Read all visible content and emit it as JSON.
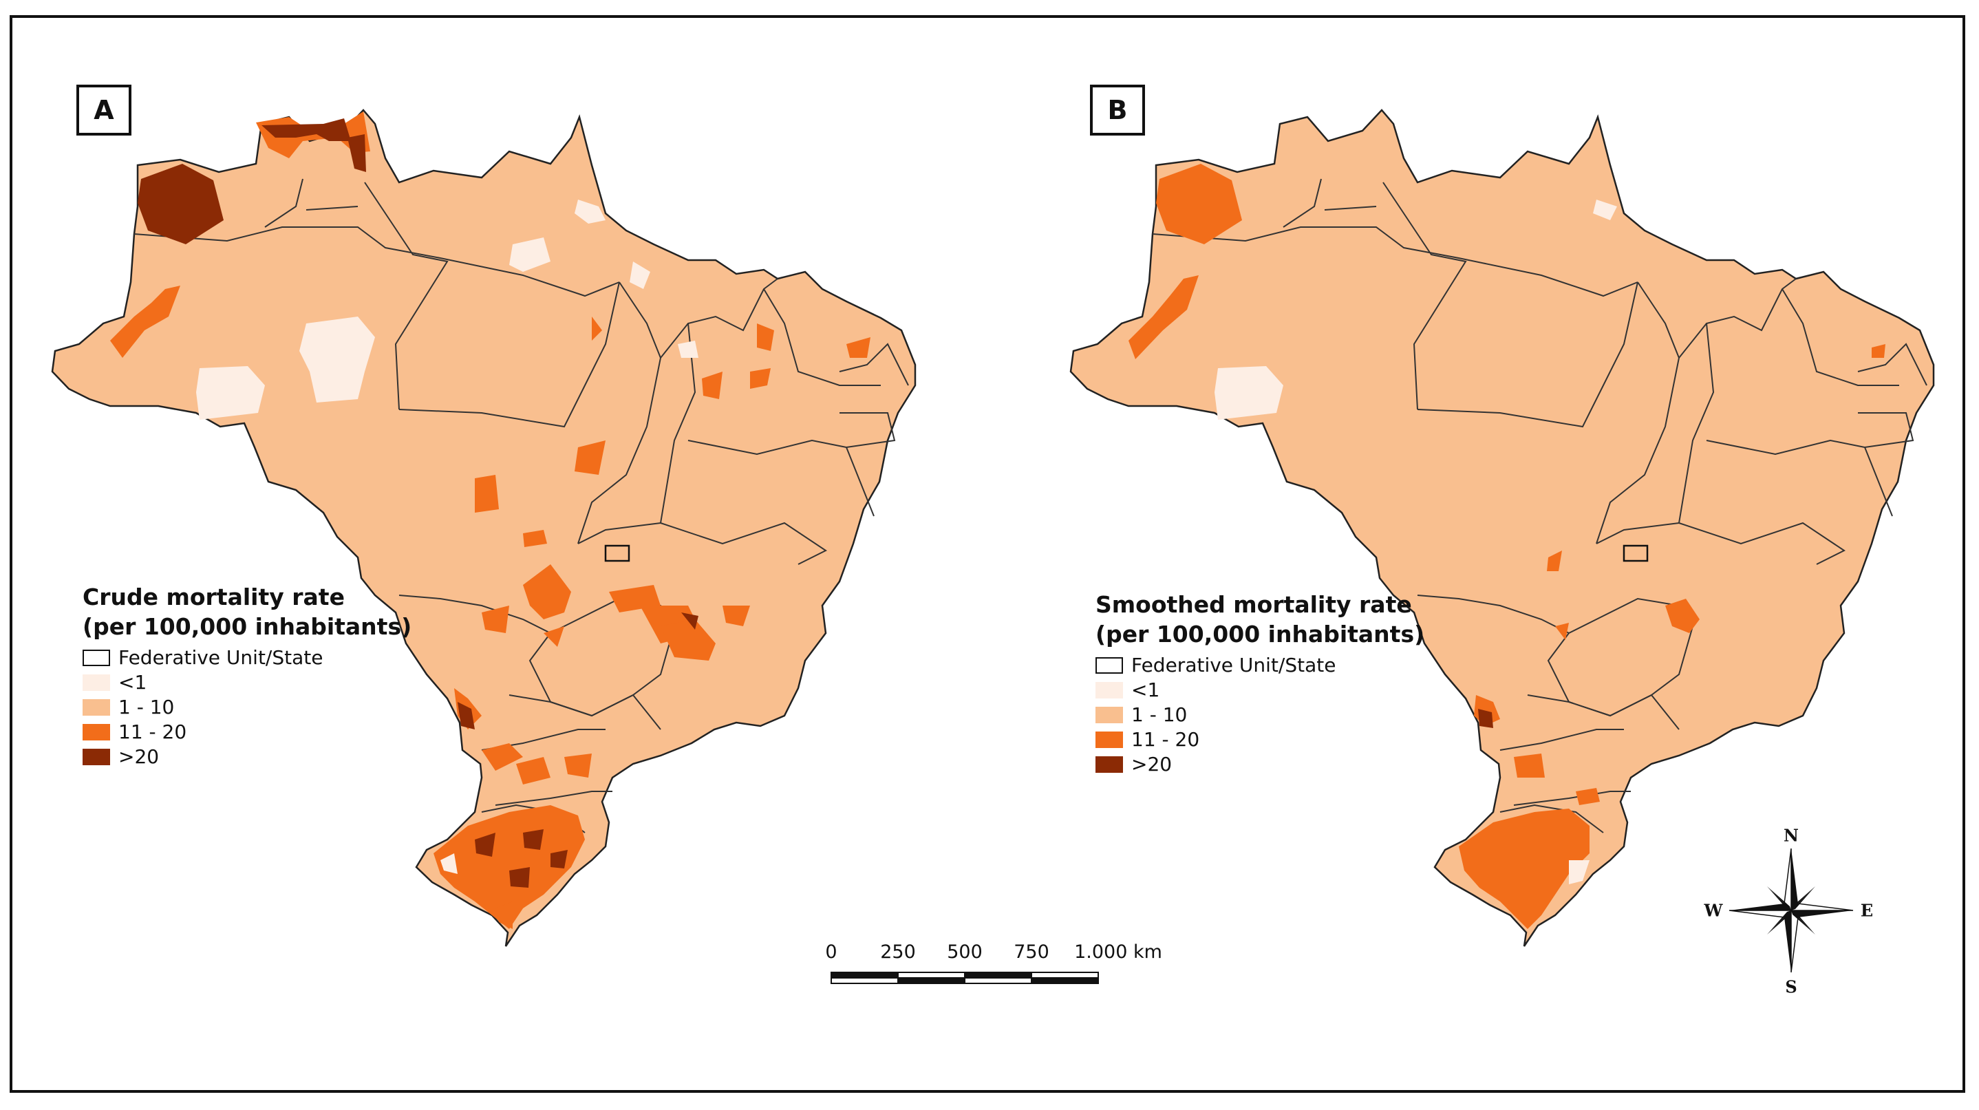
{
  "panels": [
    {
      "label": "A",
      "legend": {
        "title_line1": "Crude mortality rate",
        "title_line2": "(per 100,000 inhabitants)",
        "items": [
          {
            "label": "Federative Unit/State",
            "color": "#ffffff",
            "outline": true
          },
          {
            "label": "<1",
            "color": "#fdeee4"
          },
          {
            "label": "1 - 10",
            "color": "#f9bf8f"
          },
          {
            "label": "11 - 20",
            "color": "#f26d1a"
          },
          {
            "label": ">20",
            "color": "#8b2a05"
          }
        ]
      }
    },
    {
      "label": "B",
      "legend": {
        "title_line1": "Smoothed mortality rate",
        "title_line2": "(per 100,000 inhabitants)",
        "items": [
          {
            "label": "Federative Unit/State",
            "color": "#ffffff",
            "outline": true
          },
          {
            "label": "<1",
            "color": "#fdeee4"
          },
          {
            "label": "1 - 10",
            "color": "#f9bf8f"
          },
          {
            "label": "11 - 20",
            "color": "#f26d1a"
          },
          {
            "label": ">20",
            "color": "#8b2a05"
          }
        ]
      }
    }
  ],
  "scale_bar": {
    "labels": [
      "0",
      "250",
      "500",
      "750",
      "1.000 km"
    ]
  },
  "compass": {
    "n": "N",
    "s": "S",
    "e": "E",
    "w": "W"
  }
}
